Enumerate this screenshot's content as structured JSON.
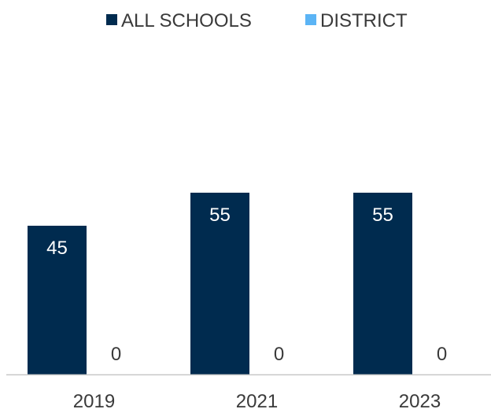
{
  "chart_data": {
    "type": "bar",
    "categories": [
      "2019",
      "2021",
      "2023"
    ],
    "series": [
      {
        "name": "ALL SCHOOLS",
        "values": [
          45,
          55,
          55
        ],
        "color": "#002b4f"
      },
      {
        "name": "DISTRICT",
        "values": [
          0,
          0,
          0
        ],
        "color": "#5bb4f5"
      }
    ],
    "title": "",
    "xlabel": "",
    "ylabel": "",
    "ylim": [
      0,
      100
    ],
    "grid": false,
    "legend_position": "top",
    "data_labels": true,
    "axis_color": "#c8c8c8"
  }
}
